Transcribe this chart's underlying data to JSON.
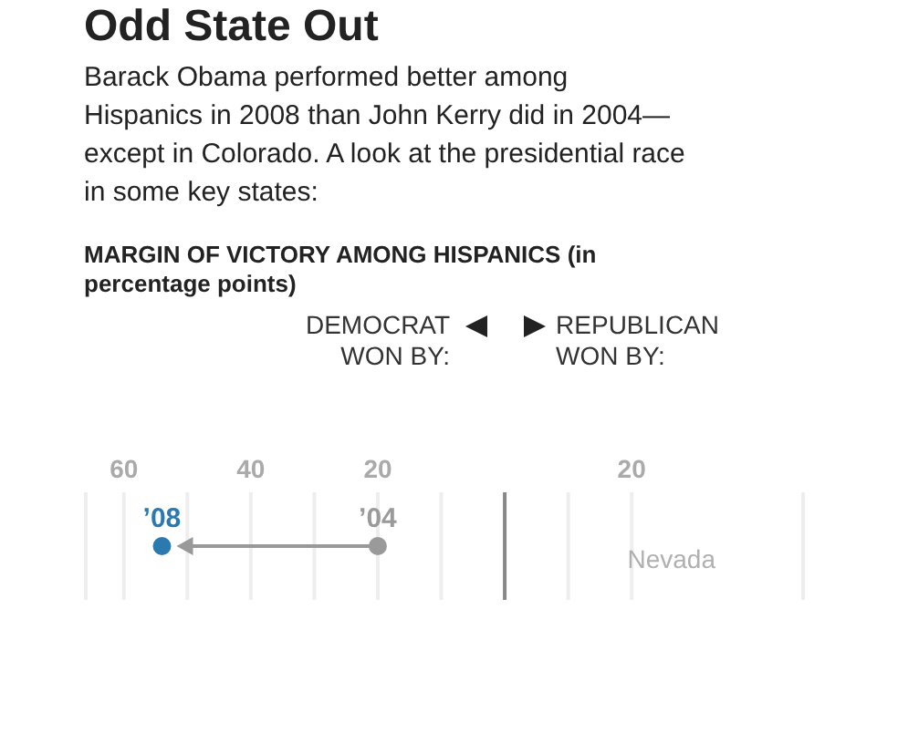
{
  "chart_data": {
    "type": "scatter",
    "orientation": "horizontal",
    "title": "Odd State Out",
    "subtitle": "Barack Obama performed better among Hispanics in 2008 than John Kerry did in 2004—except in Colorado. A look at the presidential race in some key states:",
    "annotations": [
      "MARGIN OF VICTORY AMONG HISPANICS (in percentage points)",
      "DEMOCRAT WON BY:",
      "REPUBLICAN WON BY:"
    ],
    "categories": [
      "Nevada"
    ],
    "series": [
      {
        "name": "’08",
        "color": "#2a7ab0",
        "values": [
          -54
        ]
      },
      {
        "name": "’04",
        "color": "#9a9a9a",
        "values": [
          -20
        ]
      }
    ],
    "xlim": [
      -66,
      47
    ],
    "xticks": [
      {
        "value": -60,
        "label": "60"
      },
      {
        "value": -50,
        "label": null
      },
      {
        "value": -40,
        "label": "40"
      },
      {
        "value": -30,
        "label": null
      },
      {
        "value": -20,
        "label": "20"
      },
      {
        "value": -10,
        "label": null
      },
      {
        "value": 10,
        "label": null
      },
      {
        "value": 20,
        "label": "20"
      }
    ],
    "ref_lines": [
      {
        "axis": "x",
        "value": 0,
        "color": "#888888"
      }
    ],
    "grid": "x",
    "marker": "circle"
  }
}
